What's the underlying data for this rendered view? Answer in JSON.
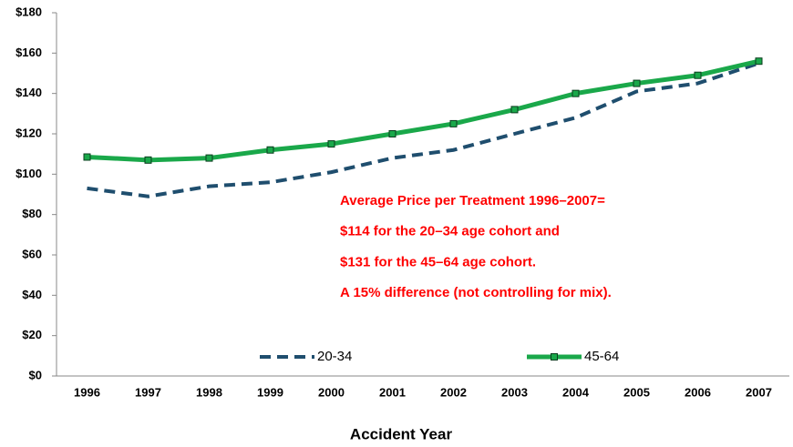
{
  "chart_data": {
    "type": "line",
    "x_label": "Accident Year",
    "categories": [
      "1996",
      "1997",
      "1998",
      "1999",
      "2000",
      "2001",
      "2002",
      "2003",
      "2004",
      "2005",
      "2006",
      "2007"
    ],
    "series": [
      {
        "name": "20-34",
        "color": "#1f4e6e",
        "style": "dashed",
        "marker": "none",
        "values": [
          93,
          89,
          94,
          96,
          101,
          108,
          112,
          120,
          128,
          141,
          145,
          155
        ]
      },
      {
        "name": "45-64",
        "color": "#1aa84a",
        "style": "solid",
        "marker": "square",
        "values": [
          108.5,
          107,
          108,
          112,
          115,
          120,
          125,
          132,
          140,
          145,
          149,
          156
        ]
      }
    ],
    "ylim": [
      0,
      180
    ],
    "yticks": [
      {
        "value": 0,
        "label": "$0"
      },
      {
        "value": 20,
        "label": "$20"
      },
      {
        "value": 40,
        "label": "$40"
      },
      {
        "value": 60,
        "label": "$60"
      },
      {
        "value": 80,
        "label": "$80"
      },
      {
        "value": 100,
        "label": "$100"
      },
      {
        "value": 120,
        "label": "$120"
      },
      {
        "value": 140,
        "label": "$140"
      },
      {
        "value": 160,
        "label": "$160"
      },
      {
        "value": 180,
        "label": "$180"
      }
    ],
    "grid": false,
    "annotations": [
      "Average Price per Treatment 1996–2007=",
      "$114 for the 20–34 age cohort and",
      "$131 for the 45–64 age cohort.",
      "A 15% difference (not controlling for mix)."
    ]
  }
}
